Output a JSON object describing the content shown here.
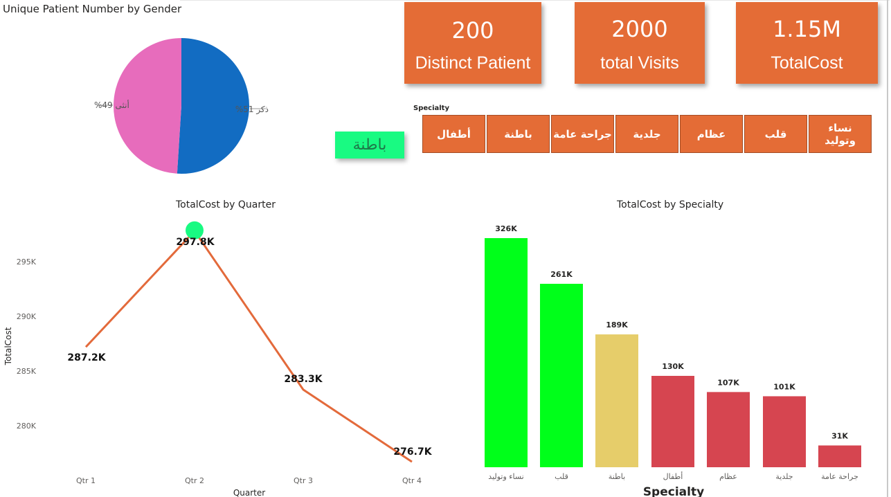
{
  "colors": {
    "accent": "#e46c36",
    "female": "#e76cbc",
    "male": "#126cc2",
    "line": "#e36a3b",
    "highlight": "#19fa82",
    "bar_green": "#00ff1a",
    "bar_yellow": "#e6cd6a",
    "bar_red": "#d64550"
  },
  "gender_chart": {
    "title": "Unique Patient Number by Gender",
    "labels": [
      {
        "text": "أنثى 49%",
        "color_key": "female"
      },
      {
        "text": "ذكر 51%",
        "color_key": "male"
      }
    ]
  },
  "kpis": [
    {
      "value": "200",
      "label": "Distinct Patient"
    },
    {
      "value": "2000",
      "label": "total Visits"
    },
    {
      "value": "1.15M",
      "label": "TotalCost"
    }
  ],
  "slicer": {
    "title": "Specialty",
    "selected": "باطنة",
    "buttons": [
      "أطفال",
      "باطنة",
      "جراحة عامة",
      "جلدية",
      "عظام",
      "قلب",
      "نساء وتوليد"
    ]
  },
  "quarter_chart": {
    "title": "TotalCost by Quarter",
    "xlabel": "Quarter",
    "ylabel": "TotalCost",
    "ytick_labels": [
      "280K",
      "285K",
      "290K",
      "295K"
    ],
    "data_labels": [
      "287.2K",
      "297.8K",
      "283.3K",
      "276.7K"
    ]
  },
  "specialty_chart": {
    "title": "TotalCost by Specialty",
    "xlabel": "Specialty",
    "data_labels": [
      "326K",
      "261K",
      "189K",
      "130K",
      "107K",
      "101K",
      "31K"
    ]
  },
  "chart_data": [
    {
      "type": "pie",
      "title": "Unique Patient Number by Gender",
      "categories": [
        "أنثى",
        "ذكر"
      ],
      "values": [
        49,
        51
      ],
      "unit": "%"
    },
    {
      "type": "line",
      "title": "TotalCost by Quarter",
      "xlabel": "Quarter",
      "ylabel": "TotalCost",
      "x": [
        "Qtr 1",
        "Qtr 2",
        "Qtr 3",
        "Qtr 4"
      ],
      "values": [
        287200,
        297800,
        283300,
        276700
      ],
      "ylim": [
        277500,
        300000
      ],
      "yticks": [
        280000,
        285000,
        290000,
        295000
      ],
      "highlighted_point": "Qtr 2",
      "grid": false
    },
    {
      "type": "bar",
      "title": "TotalCost by Specialty",
      "xlabel": "Specialty",
      "categories": [
        "نساء وتوليد",
        "قلب",
        "باطنة",
        "أطفال",
        "عظام",
        "جلدية",
        "جراحة عامة"
      ],
      "values": [
        326000,
        261000,
        189000,
        130000,
        107000,
        101000,
        31000
      ],
      "bar_colors": [
        "#00ff1a",
        "#00ff1a",
        "#e6cd6a",
        "#d64550",
        "#d64550",
        "#d64550",
        "#d64550"
      ],
      "ylim": [
        0,
        326000
      ],
      "grid": false
    }
  ]
}
